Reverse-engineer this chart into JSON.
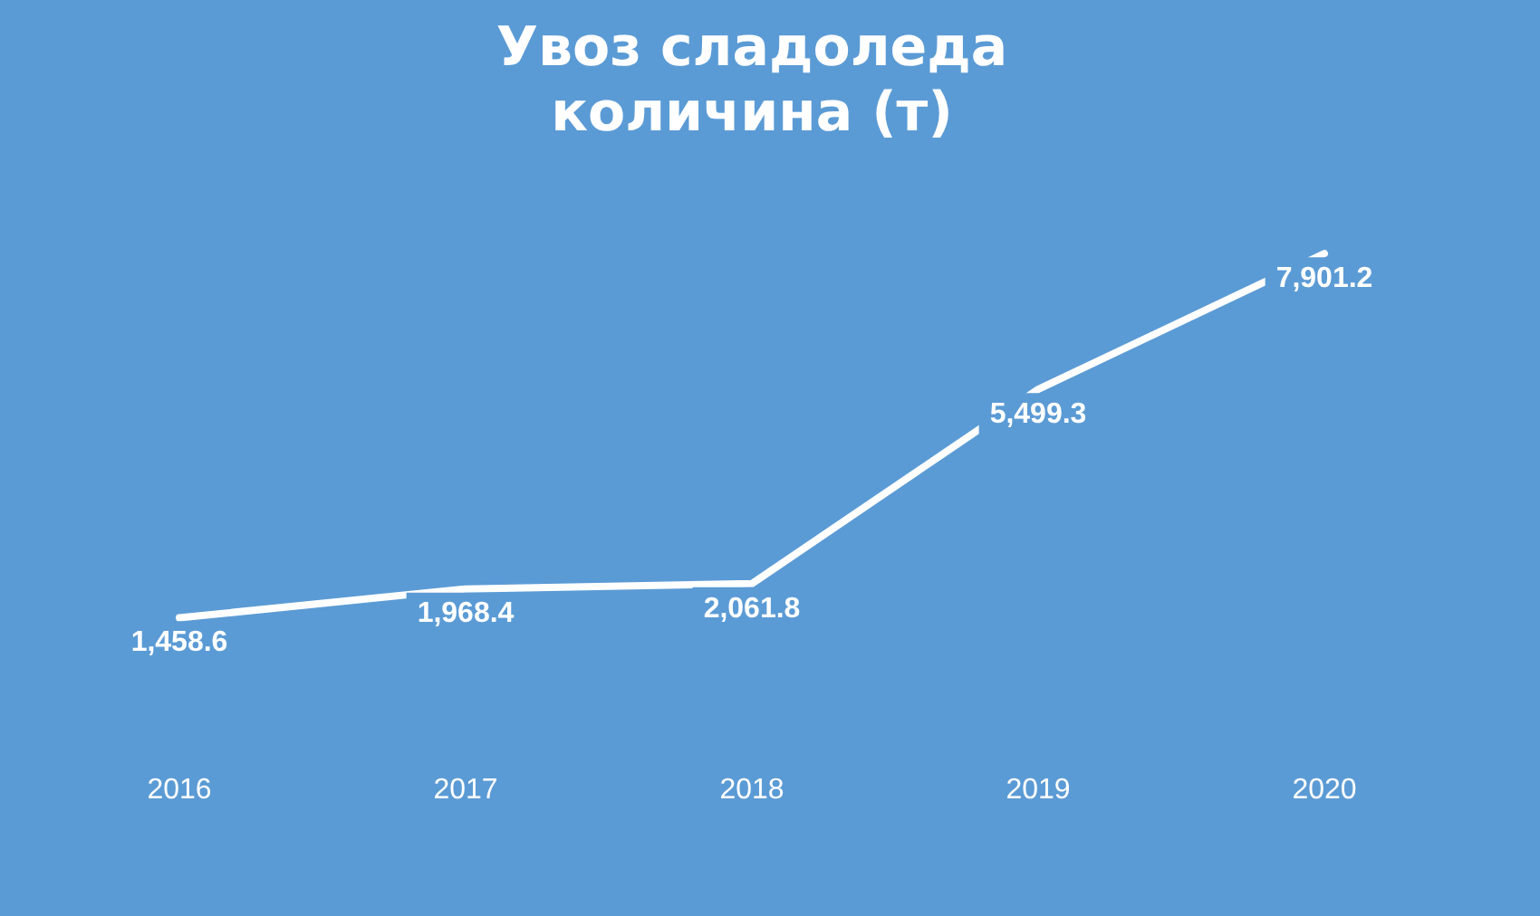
{
  "chart_data": {
    "type": "line",
    "title": "Увоз сладоледа\nколичина (т)",
    "categories": [
      "2016",
      "2017",
      "2018",
      "2019",
      "2020"
    ],
    "series": [
      {
        "color": "#ffffff",
        "values": [
          1458.6,
          1968.4,
          2061.8,
          5499.3,
          7901.2
        ],
        "value_labels": [
          "1,458.6",
          "1,968.4",
          "2,061.8",
          "5,499.3",
          "7,901.2"
        ]
      }
    ],
    "grid": false,
    "legend": false,
    "marker": "none",
    "line_style": "solid",
    "tick_labels": "x"
  }
}
